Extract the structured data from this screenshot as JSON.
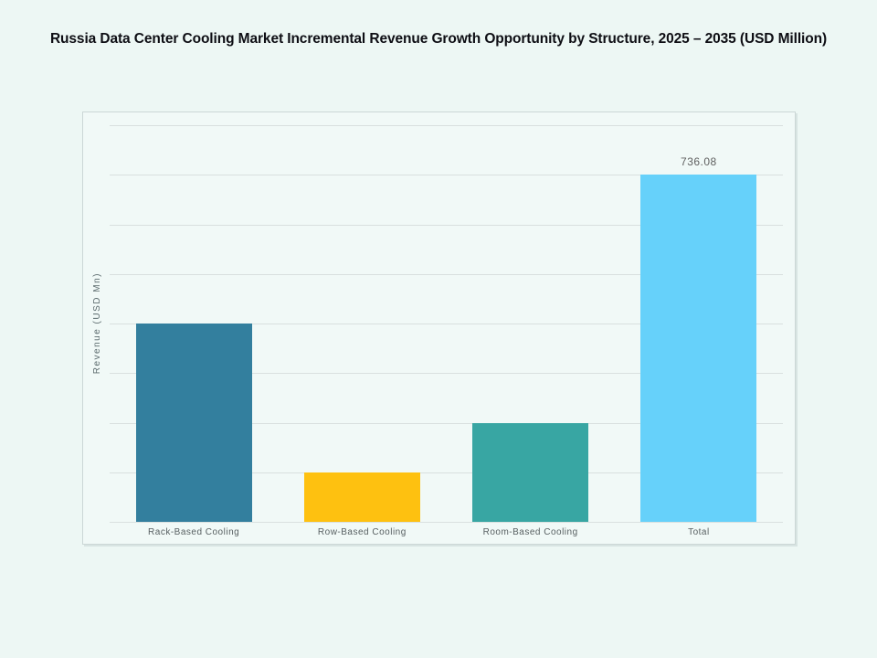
{
  "page": {
    "background": "#edf7f4"
  },
  "chart_data": {
    "type": "bar",
    "title": "Russia Data Center Cooling Market Incremental Revenue Growth Opportunity by Structure, 2025 – 2035 (USD Million)",
    "categories": [
      "Rack-Based Cooling",
      "Row-Based Cooling",
      "Room-Based Cooling",
      "Total"
    ],
    "values": [
      420.6,
      105.2,
      210.3,
      736.08
    ],
    "data_labels": [
      "",
      "",
      "",
      "736.08"
    ],
    "bar_colors": [
      "#337F9E",
      "#FEC110",
      "#38A6A3",
      "#66D1FA"
    ],
    "xlabel": "",
    "ylabel": "Revenue (USD Mn)",
    "ylim": [
      0,
      841.2
    ],
    "grid": "horizontal",
    "gridline_count": 9,
    "gridline_color": "#d9e0df",
    "legend": "none",
    "title_color": "#0e0e14",
    "value_label_color": "#5f5f5f",
    "category_label_color": "#586062",
    "axis_label_color": "#5c6b6e",
    "panel_background": "#f1f9f7",
    "panel_border_color": "#ccd7d6"
  }
}
